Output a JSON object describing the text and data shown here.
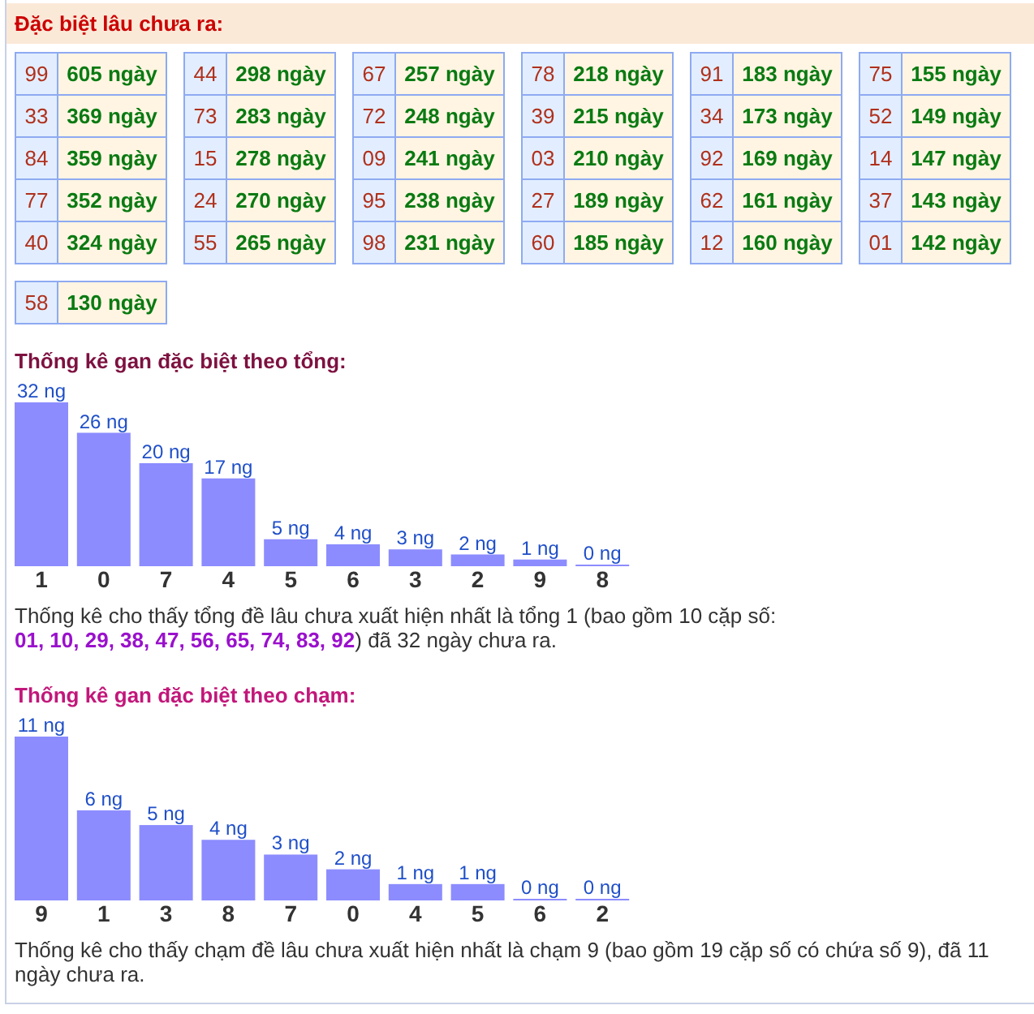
{
  "chart_data": [
    {
      "type": "other",
      "title": "Đặc biệt lâu chưa ra:",
      "categories": [
        "99",
        "33",
        "84",
        "77",
        "40",
        "44",
        "73",
        "15",
        "24",
        "55",
        "67",
        "72",
        "09",
        "95",
        "98",
        "78",
        "39",
        "03",
        "27",
        "60",
        "91",
        "34",
        "92",
        "62",
        "12",
        "75",
        "52",
        "14",
        "37",
        "01",
        "58"
      ],
      "values": [
        605,
        369,
        359,
        352,
        324,
        298,
        283,
        278,
        270,
        265,
        257,
        248,
        241,
        238,
        231,
        218,
        215,
        210,
        189,
        185,
        183,
        173,
        169,
        161,
        160,
        155,
        149,
        147,
        143,
        142,
        130
      ],
      "value_labels": [
        "605 ngày",
        "369 ngày",
        "359 ngày",
        "352 ngày",
        "324 ngày",
        "298 ngày",
        "283 ngày",
        "278 ngày",
        "270 ngày",
        "265 ngày",
        "257 ngày",
        "248 ngày",
        "241 ngày",
        "238 ngày",
        "231 ngày",
        "218 ngày",
        "215 ngày",
        "210 ngày",
        "189 ngày",
        "185 ngày",
        "183 ngày",
        "173 ngày",
        "169 ngày",
        "161 ngày",
        "160 ngày",
        "155 ngày",
        "149 ngày",
        "147 ngày",
        "143 ngày",
        "142 ngày",
        "130 ngày"
      ]
    },
    {
      "type": "bar",
      "title": "Thống kê gan đặc biệt theo tổng:",
      "categories": [
        "1",
        "0",
        "7",
        "4",
        "5",
        "6",
        "3",
        "2",
        "9",
        "8"
      ],
      "values": [
        32,
        26,
        20,
        17,
        5,
        4,
        3,
        2,
        1,
        0
      ],
      "value_labels": [
        "32 ng",
        "26 ng",
        "20 ng",
        "17 ng",
        "5 ng",
        "4 ng",
        "3 ng",
        "2 ng",
        "1 ng",
        "0 ng"
      ],
      "color": "#8c8cff",
      "annotations": [
        "Thống kê cho thấy tổng đề lâu chưa xuất hiện nhất là tổng 1 (bao gồm 10 cặp số: ",
        "01, 10, 29, 38, 47, 56, 65, 74, 83, 92",
        ") đã 32 ngày chưa ra."
      ]
    },
    {
      "type": "bar",
      "title": "Thống kê gan đặc biệt theo chạm:",
      "categories": [
        "9",
        "1",
        "3",
        "8",
        "7",
        "0",
        "4",
        "5",
        "6",
        "2"
      ],
      "values": [
        11,
        6,
        5,
        4,
        3,
        2,
        1,
        1,
        0,
        0
      ],
      "value_labels": [
        "11 ng",
        "6 ng",
        "5 ng",
        "4 ng",
        "3 ng",
        "2 ng",
        "1 ng",
        "1 ng",
        "0 ng",
        "0 ng"
      ],
      "color": "#8c8cff",
      "annotations": [
        "Thống kê cho thấy chạm đề lâu chưa xuất hiện nhất là chạm 9 (bao gồm 19 cặp số có chứa số 9), đã 11 ngày chưa ra."
      ]
    }
  ]
}
